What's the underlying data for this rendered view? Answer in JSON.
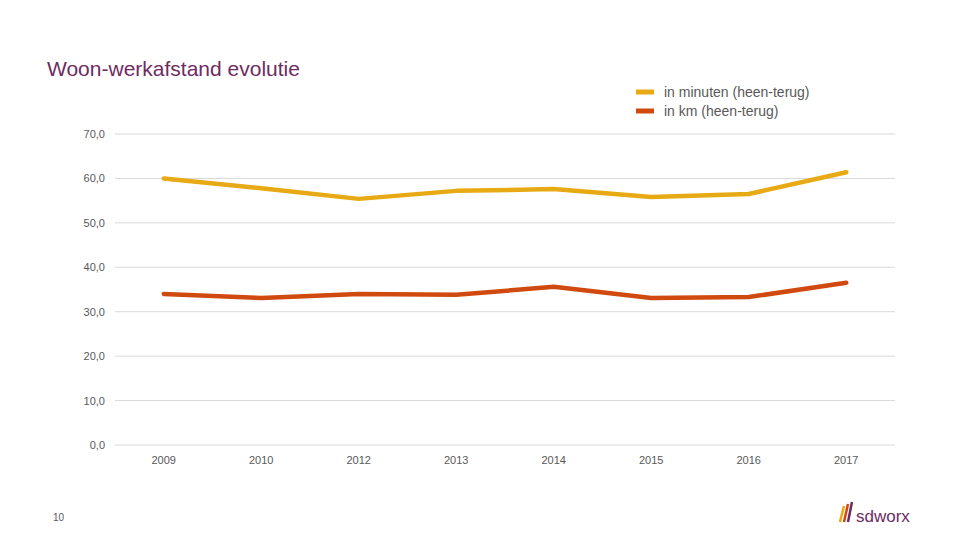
{
  "chart_data": {
    "type": "line",
    "title": "Woon-werkafstand evolutie",
    "categories": [
      "2009",
      "2010",
      "2012",
      "2013",
      "2014",
      "2015",
      "2016",
      "2017"
    ],
    "series": [
      {
        "name": "in minuten (heen-terug)",
        "color": "#e8aa14",
        "values": [
          60.0,
          57.8,
          55.4,
          57.2,
          57.6,
          55.8,
          56.5,
          61.4
        ]
      },
      {
        "name": "in km (heen-terug)",
        "color": "#d04a0f",
        "values": [
          34.0,
          33.1,
          34.0,
          33.8,
          35.6,
          33.1,
          33.3,
          36.5
        ]
      }
    ],
    "ylim": [
      0,
      70
    ],
    "yticks": [
      {
        "value": 0,
        "label": "0,0"
      },
      {
        "value": 10,
        "label": "10,0"
      },
      {
        "value": 20,
        "label": "20,0"
      },
      {
        "value": 30,
        "label": "30,0"
      },
      {
        "value": 40,
        "label": "40,0"
      },
      {
        "value": 50,
        "label": "50,0"
      },
      {
        "value": 60,
        "label": "60,0"
      },
      {
        "value": 70,
        "label": "70,0"
      }
    ],
    "grid": true,
    "legend": "top-right"
  },
  "footer": {
    "page_number": "10",
    "logo": "sdworx"
  }
}
